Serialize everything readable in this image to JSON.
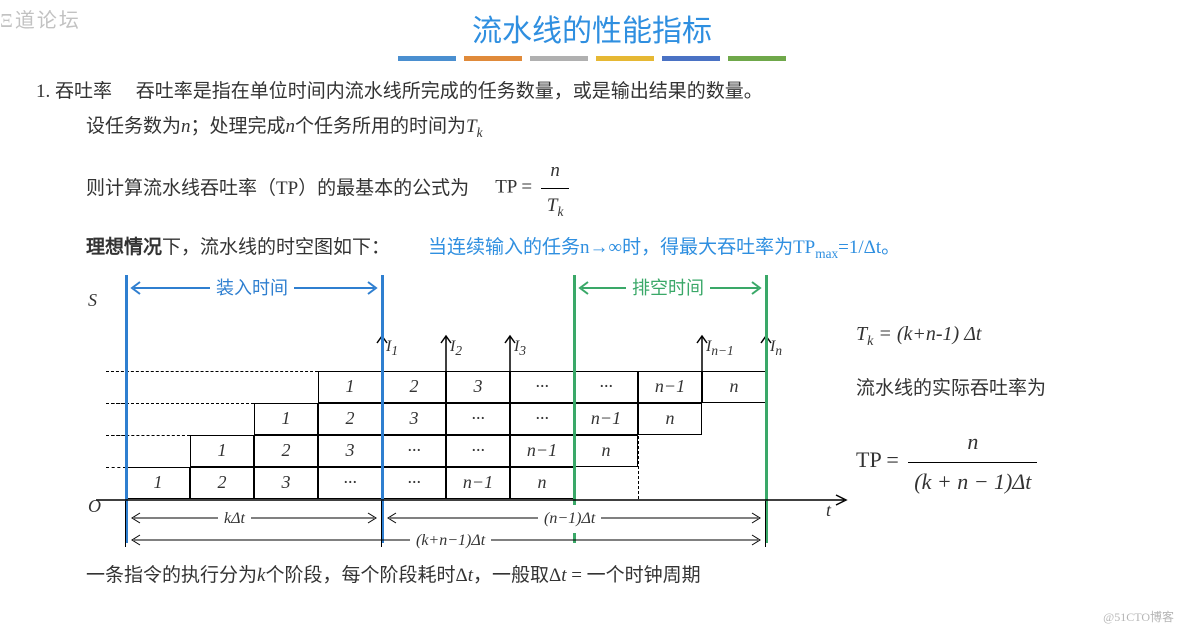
{
  "watermark": {
    "top_left": "Ξ道论坛",
    "bottom_right": "@51CTO博客"
  },
  "title": "流水线的性能指标",
  "bars": [
    "#4a8fd0",
    "#e08a3a",
    "#b0b0b0",
    "#e6b833",
    "#4a72c4",
    "#6fa84a"
  ],
  "section": {
    "num": "1. 吞吐率",
    "def": "吞吐率是指在单位时间内流水线所完成的任务数量，或是输出结果的数量。",
    "line2_a": "设任务数为",
    "line2_b": "；处理完成",
    "line2_c": "个任务所用的时间为",
    "n": "n",
    "Tk": "T",
    "Tk_sub": "k",
    "line3_a": "则计算流水线吞吐率（TP）的最基本的公式为",
    "tp_eq": "TP =",
    "line4_a": "理想情况",
    "line4_b": "下，流水线的时空图如下：",
    "line4_blue": "当连续输入的任务n→∞时，得最大吞吐率为TP",
    "line4_blue2": "=1/Δt。",
    "max_sub": "max",
    "bottom": "一条指令的执行分为",
    "bottom_k": "k",
    "bottom_b": "个阶段，每个阶段耗时Δ",
    "bottom_t": "t",
    "bottom_c": "，一般取Δ",
    "bottom_d": " = 一个时钟周期"
  },
  "right": {
    "f1a": "T",
    "f1sub": "k",
    "f1b": " = (k+n-1) Δt",
    "f2": "流水线的实际吞吐率为",
    "f3": "TP =",
    "f3num": "n",
    "f3den": "(k + n − 1)Δt"
  },
  "diagram": {
    "annotations": {
      "load": "装入时间",
      "drain": "排空时间"
    },
    "S": "S",
    "O": "O",
    "t": "t",
    "I": [
      "I₁",
      "I₂",
      "I₃",
      "I",
      "I"
    ],
    "I_nm1": "n−1",
    "I_n": "n",
    "dims": {
      "k": "kΔt",
      "nm1": "(n−1)Δt",
      "all": "(k+n−1)Δt"
    },
    "cells": {
      "r0": [
        "1",
        "2",
        "3",
        "···",
        "···",
        "n−1",
        "n"
      ],
      "r1": [
        "1",
        "2",
        "3",
        "···",
        "···",
        "n−1",
        "n"
      ],
      "r2": [
        "1",
        "2",
        "3",
        "···",
        "···",
        "n−1",
        "n"
      ],
      "r3": [
        "1",
        "2",
        "3",
        "···",
        "···",
        "n−1",
        "n"
      ]
    },
    "colors": {
      "load_line": "#2f7fd0",
      "drain_line": "#3aa868"
    }
  }
}
